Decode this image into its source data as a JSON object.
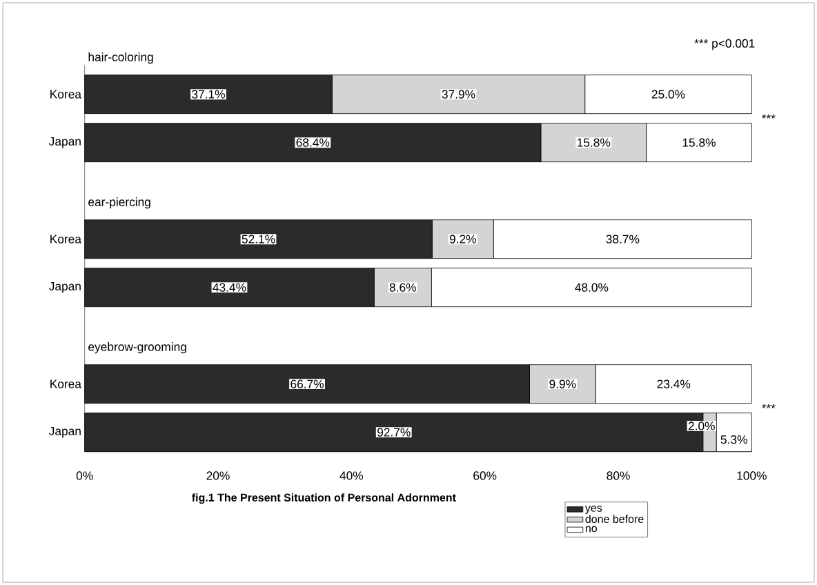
{
  "chart_data": {
    "type": "bar",
    "orientation": "horizontal",
    "stacked": true,
    "title": "fig.1  The Present Situation of Personal Adornment",
    "categories": [
      null,
      "Korea",
      "Japan",
      null,
      "Korea",
      "Japan",
      null,
      "Korea",
      "Japan"
    ],
    "series": [
      {
        "name": "yes",
        "color": "#2b2b2b",
        "values": [
          null,
          37.1,
          68.4,
          null,
          52.1,
          43.4,
          null,
          66.7,
          92.7
        ],
        "value_labels": [
          null,
          "37.1%",
          "68.4%",
          null,
          "52.1%",
          "43.4%",
          null,
          "66.7%",
          "92.7%"
        ]
      },
      {
        "name": "done before",
        "color": "#d4d4d4",
        "values": [
          null,
          37.9,
          15.8,
          null,
          9.2,
          8.6,
          null,
          9.9,
          2.0
        ],
        "value_labels": [
          null,
          "37.9%",
          "15.8%",
          null,
          "9.2%",
          "8.6%",
          null,
          "9.9%",
          "2.0%"
        ]
      },
      {
        "name": "no",
        "color": "#ffffff",
        "values": [
          null,
          25.0,
          15.8,
          null,
          38.7,
          48.0,
          null,
          23.4,
          5.3
        ],
        "value_labels": [
          null,
          "25.0%",
          "15.8%",
          null,
          "38.7%",
          "48.0%",
          null,
          "23.4%",
          "5.3%"
        ]
      }
    ],
    "xlim": [
      0,
      100
    ],
    "xticks": [
      {
        "value": 0,
        "label": "0%"
      },
      {
        "value": 20,
        "label": "20%"
      },
      {
        "value": 40,
        "label": "40%"
      },
      {
        "value": 60,
        "label": "60%"
      },
      {
        "value": 80,
        "label": "80%"
      },
      {
        "value": 100,
        "label": "100%"
      }
    ],
    "annotations": [
      "hair-coloring",
      "ear-piercing",
      "eyebrow-grooming",
      "*** p<0.001",
      "***",
      "***"
    ],
    "legend": "bottom right",
    "grid": false
  }
}
